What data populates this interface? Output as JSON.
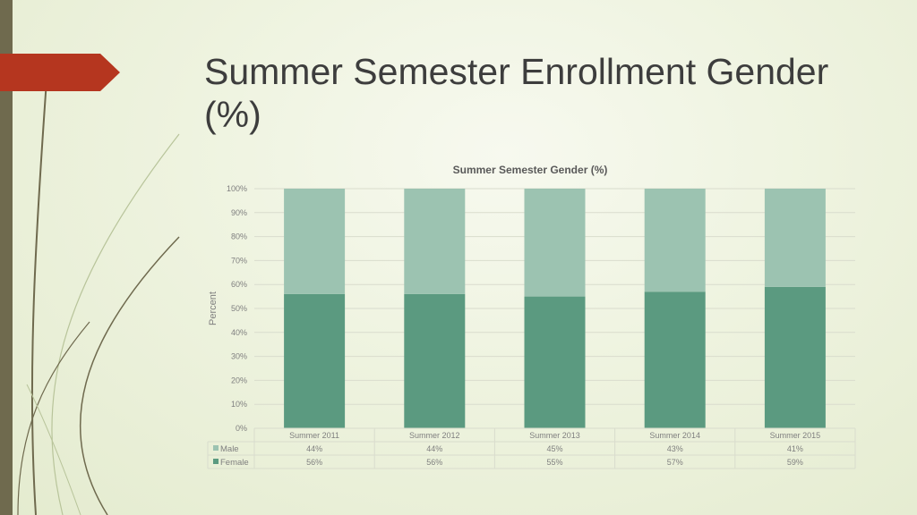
{
  "slide": {
    "title": "Summer Semester Enrollment Gender (%)"
  },
  "colors": {
    "male": "#9cc3b1",
    "female": "#5b9a80",
    "accent": "#b5361f",
    "bar_left": "#6f6a4e"
  },
  "chart_data": {
    "type": "bar",
    "stacked": true,
    "title": "Summer Semester Gender (%)",
    "ylabel": "Percent",
    "xlabel": "",
    "ylim": [
      0,
      100
    ],
    "yticks": [
      "0%",
      "10%",
      "20%",
      "30%",
      "40%",
      "50%",
      "60%",
      "70%",
      "80%",
      "90%",
      "100%"
    ],
    "categories": [
      "Summer 2011",
      "Summer 2012",
      "Summer 2013",
      "Summer 2014",
      "Summer 2015"
    ],
    "series": [
      {
        "name": "Female",
        "values": [
          56,
          56,
          55,
          57,
          59
        ],
        "labels": [
          "56%",
          "56%",
          "55%",
          "57%",
          "59%"
        ]
      },
      {
        "name": "Male",
        "values": [
          44,
          44,
          45,
          43,
          41
        ],
        "labels": [
          "44%",
          "44%",
          "45%",
          "43%",
          "41%"
        ]
      }
    ],
    "data_table": true,
    "grid": true
  }
}
